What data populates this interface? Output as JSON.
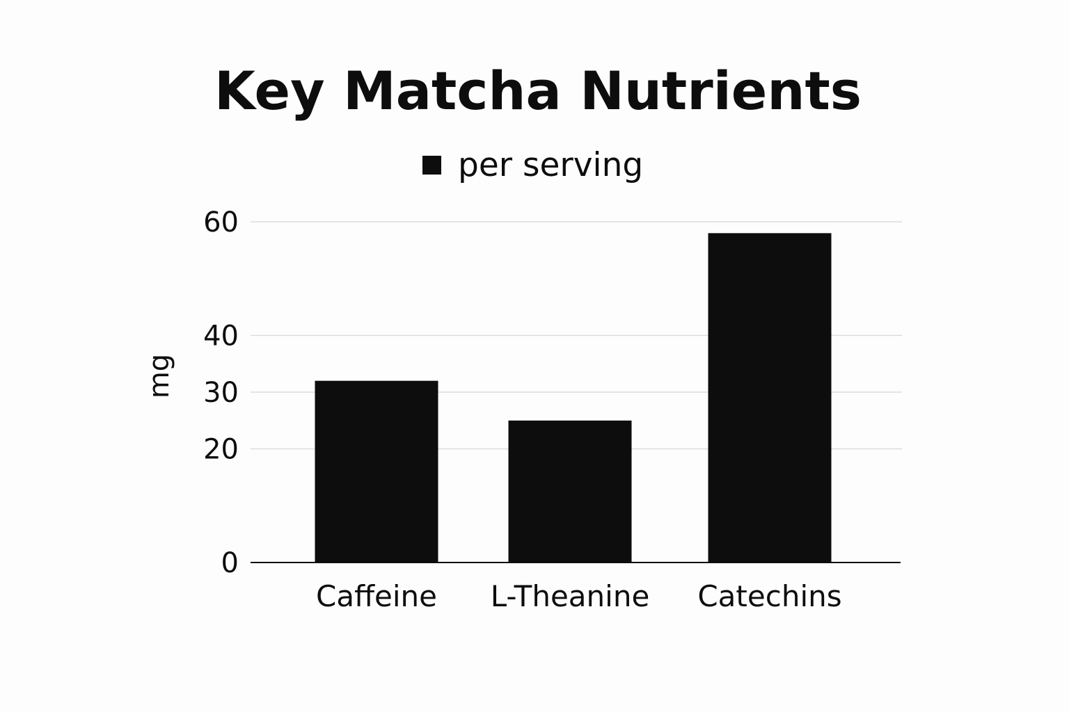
{
  "chart_data": {
    "type": "bar",
    "title": "Key Matcha Nutrients",
    "ylabel": "mg",
    "xlabel": "",
    "categories": [
      "Caffeine",
      "L-Theanine",
      "Catechins"
    ],
    "series": [
      {
        "name": "per serving",
        "values": [
          32,
          25,
          58
        ]
      }
    ],
    "yticks": [
      0,
      20,
      30,
      40,
      60
    ],
    "ylim": [
      0,
      60
    ],
    "grid": true,
    "legend_position": "top-center",
    "colors": {
      "bar": "#0d0d0d",
      "grid": "#dcdcdc",
      "axis": "#0d0d0d",
      "text": "#0d0d0d",
      "background": "#fdfdfd"
    }
  }
}
